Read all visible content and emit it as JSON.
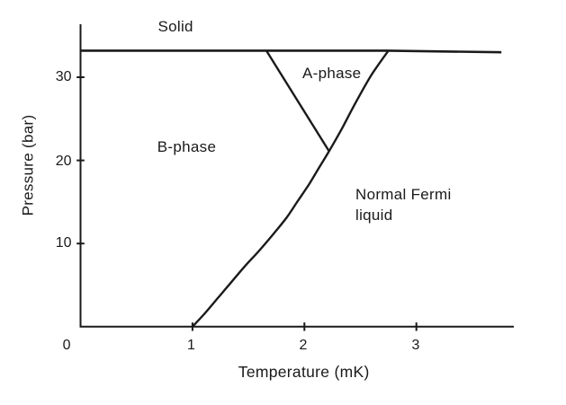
{
  "figure": {
    "background": "#ffffff",
    "ink_color": "#1a1a1a",
    "description": "Phase diagram of helium-3 at millikelvin temperatures"
  },
  "chart_data": {
    "type": "line",
    "title": "",
    "xlabel": "Temperature (mK)",
    "ylabel": "Pressure (bar)",
    "xlim": [
      0,
      3.87
    ],
    "ylim": [
      0,
      36.4
    ],
    "grid": false,
    "legend": false,
    "x_ticks": [
      {
        "value": 0,
        "label": "0"
      },
      {
        "value": 1,
        "label": "1"
      },
      {
        "value": 2,
        "label": "2"
      },
      {
        "value": 3,
        "label": "3"
      }
    ],
    "y_ticks": [
      {
        "value": 10,
        "label": "10"
      },
      {
        "value": 20,
        "label": "20"
      },
      {
        "value": 30,
        "label": "30"
      }
    ],
    "series": [
      {
        "name": "melting-curve",
        "style": "straight",
        "points": [
          [
            0,
            33.2
          ],
          [
            2.74,
            33.2
          ],
          [
            3.76,
            33.0
          ]
        ]
      },
      {
        "name": "superfluid-transition-curve",
        "style": "smooth",
        "points": [
          [
            1.0,
            0
          ],
          [
            1.11,
            1.6
          ],
          [
            1.23,
            3.5
          ],
          [
            1.35,
            5.4
          ],
          [
            1.47,
            7.3
          ],
          [
            1.6,
            9.2
          ],
          [
            1.72,
            11.1
          ],
          [
            1.84,
            13.1
          ],
          [
            1.94,
            15.1
          ],
          [
            2.04,
            17.1
          ],
          [
            2.13,
            19.1
          ],
          [
            2.22,
            21.1
          ],
          [
            2.33,
            23.7
          ],
          [
            2.46,
            27.0
          ],
          [
            2.6,
            30.3
          ],
          [
            2.75,
            33.2
          ]
        ]
      },
      {
        "name": "ab-boundary-line",
        "style": "straight",
        "points": [
          [
            1.66,
            33.2
          ],
          [
            2.22,
            21.1
          ]
        ]
      }
    ],
    "regions": [
      {
        "name": "solid",
        "label": "Solid"
      },
      {
        "name": "a-phase",
        "label": "A-phase"
      },
      {
        "name": "b-phase",
        "label": "B-phase"
      },
      {
        "name": "normal-fermi-liquid",
        "label": "Normal Fermi liquid",
        "lines": [
          "Normal Fermi",
          "liquid"
        ]
      }
    ]
  }
}
